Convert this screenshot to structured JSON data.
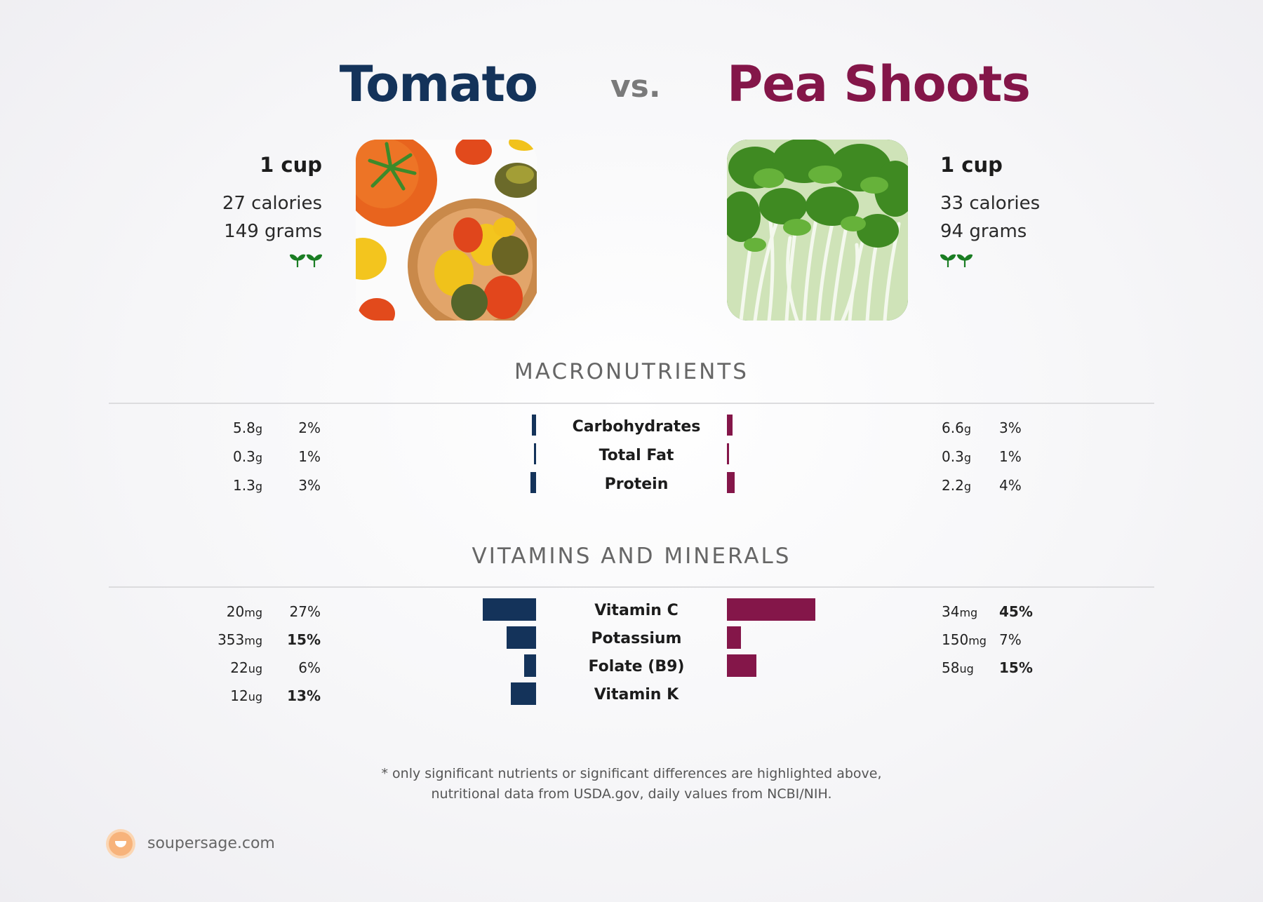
{
  "header": {
    "left_food": "Tomato",
    "vs": "vs.",
    "right_food": "Pea Shoots"
  },
  "left": {
    "serving": "1 cup",
    "calories": "27 calories",
    "grams": "149 grams",
    "icon": "sprout-icon",
    "image": "tomatoes-photo"
  },
  "right": {
    "serving": "1 cup",
    "calories": "33 calories",
    "grams": "94 grams",
    "icon": "sprout-icon",
    "image": "pea-shoots-photo"
  },
  "sections": {
    "macros_title": "MACRONUTRIENTS",
    "vitamins_title": "VITAMINS AND MINERALS"
  },
  "colors": {
    "left": "#14335a",
    "right": "#841649",
    "sprout": "#1a7d23"
  },
  "chart_data": [
    {
      "type": "bar",
      "title": "MACRONUTRIENTS",
      "categories": [
        "Carbohydrates",
        "Total Fat",
        "Protein"
      ],
      "series": [
        {
          "name": "Tomato",
          "amounts": [
            "5.8",
            "0.3",
            "1.3"
          ],
          "units": [
            "g",
            "g",
            "g"
          ],
          "values": [
            2,
            1,
            3
          ],
          "labels": [
            "2%",
            "1%",
            "3%"
          ],
          "bold": [
            false,
            false,
            false
          ]
        },
        {
          "name": "Pea Shoots",
          "amounts": [
            "6.6",
            "0.3",
            "2.2"
          ],
          "units": [
            "g",
            "g",
            "g"
          ],
          "values": [
            3,
            1,
            4
          ],
          "labels": [
            "3%",
            "1%",
            "4%"
          ],
          "bold": [
            false,
            false,
            false
          ]
        }
      ]
    },
    {
      "type": "bar",
      "title": "VITAMINS AND MINERALS",
      "categories": [
        "Vitamin C",
        "Potassium",
        "Folate (B9)",
        "Vitamin K"
      ],
      "series": [
        {
          "name": "Tomato",
          "amounts": [
            "20",
            "353",
            "22",
            "12"
          ],
          "units": [
            "mg",
            "mg",
            "ug",
            "ug"
          ],
          "values": [
            27,
            15,
            6,
            13
          ],
          "labels": [
            "27%",
            "15%",
            "6%",
            "13%"
          ],
          "bold": [
            false,
            true,
            false,
            true
          ]
        },
        {
          "name": "Pea Shoots",
          "amounts": [
            "34",
            "150",
            "58",
            null
          ],
          "units": [
            "mg",
            "mg",
            "ug",
            null
          ],
          "values": [
            45,
            7,
            15,
            null
          ],
          "labels": [
            "45%",
            "7%",
            "15%",
            null
          ],
          "bold": [
            true,
            false,
            true,
            false
          ]
        }
      ]
    }
  ],
  "footer": {
    "note_line1": "* only significant nutrients or significant differences are highlighted above,",
    "note_line2": "nutritional data from USDA.gov, daily values from NCBI/NIH.",
    "brand": "soupersage.com"
  }
}
